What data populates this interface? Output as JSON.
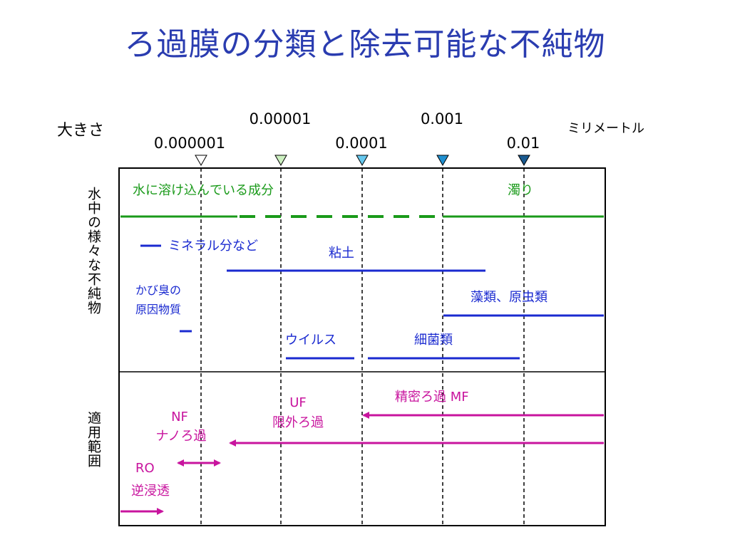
{
  "title": "ろ過膜の分類と除去可能な不純物",
  "size_axis": {
    "label": "大きさ",
    "unit": "ミリメートル",
    "ticks": [
      "0.000001",
      "0.00001",
      "0.0001",
      "0.001",
      "0.01"
    ]
  },
  "sections": {
    "impurities_label": "水中の様々な不純物",
    "range_label": "適用範囲"
  },
  "impurities": {
    "dissolved": "水に溶け込んでいる成分",
    "turbidity": "濁り",
    "minerals": "ミネラル分など",
    "clay": "粘土",
    "odor_line1": "かび臭の",
    "odor_line2": "原因物質",
    "algae": "藻類、原虫類",
    "virus": "ウイルス",
    "bacteria": "細菌類"
  },
  "membranes": {
    "mf": "精密ろ過  MF",
    "uf_line1": "UF",
    "uf_line2": "限外ろ過",
    "nf_line1": "NF",
    "nf_line2": "ナノろ過",
    "ro_line1": "RO",
    "ro_line2": "逆浸透"
  },
  "colors": {
    "title": "#2a3cb0",
    "green": "#1a9a1a",
    "blue": "#1a2ad0",
    "magenta": "#c8149e",
    "text": "#000000"
  }
}
